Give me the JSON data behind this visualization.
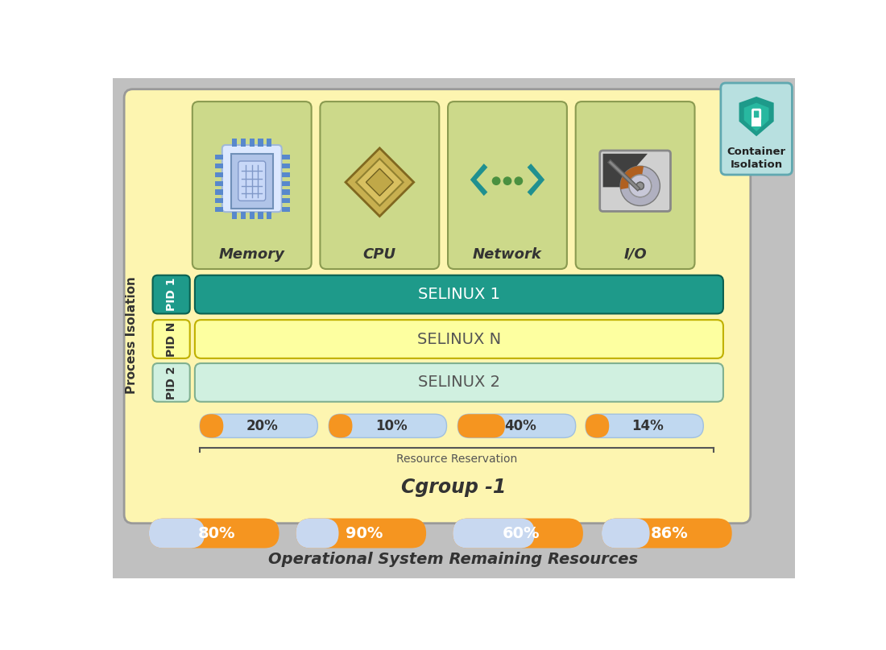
{
  "bg_outer": "#c0c0c0",
  "bg_main": "#fdf5b0",
  "bg_card": "#ccd98a",
  "teal_color": "#1e9a8a",
  "yellow_light": "#fdffa0",
  "mint_light": "#d0f0e0",
  "orange_color": "#f59520",
  "blue_light": "#c0d8f0",
  "pid1_color": "#1e9a8a",
  "pidn_color": "#fdffa0",
  "pid2_color": "#d0f0e0",
  "resource_items": [
    {
      "pct": "20%",
      "fill": 0.2
    },
    {
      "pct": "10%",
      "fill": 0.1
    },
    {
      "pct": "40%",
      "fill": 0.4
    },
    {
      "pct": "14%",
      "fill": 0.14
    }
  ],
  "remaining_items": [
    {
      "pct": "80%",
      "fill": 0.8
    },
    {
      "pct": "90%",
      "fill": 0.9
    },
    {
      "pct": "60%",
      "fill": 0.6
    },
    {
      "pct": "86%",
      "fill": 0.86
    }
  ],
  "selinux_labels": [
    "SELINUX 1",
    "SELINUX N",
    "SELINUX 2"
  ],
  "resource_labels": [
    "Memory",
    "CPU",
    "Network",
    "I/O"
  ],
  "pid_labels": [
    "PID 1",
    "PID N",
    "PID 2"
  ],
  "process_isolation_label": "Process Isolation",
  "cgroup_label": "Cgroup -1",
  "resource_reservation_label": "Resource Reservation",
  "os_remaining_label": "Operational System Remaining Resources",
  "container_isolation_label": "Container\nIsolation"
}
